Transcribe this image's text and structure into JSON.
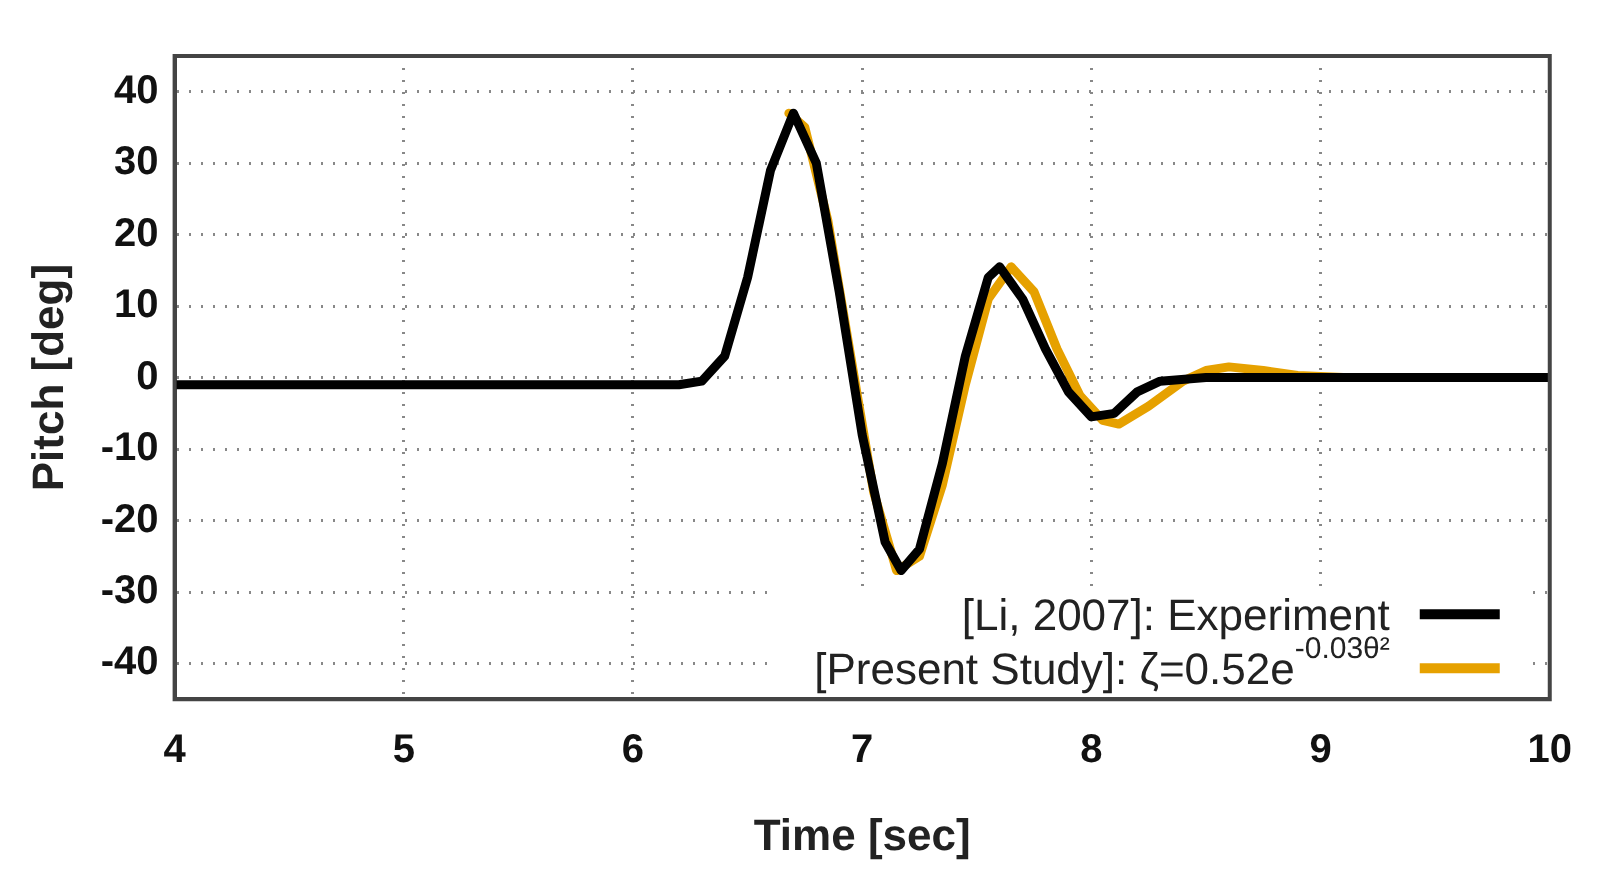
{
  "chart_data": {
    "type": "line",
    "xlabel": "Time [sec]",
    "ylabel": "Pitch [deg]",
    "xlim": [
      4,
      10
    ],
    "ylim": [
      -45,
      45
    ],
    "xticks": [
      4,
      5,
      6,
      7,
      8,
      9,
      10
    ],
    "yticks": [
      -40,
      -30,
      -20,
      -10,
      0,
      10,
      20,
      30,
      40
    ],
    "grid": true,
    "legend": "bottom right",
    "marker": "none",
    "line_style": "solid",
    "series": [
      {
        "name": "[Li, 2007]: Experiment",
        "color": "#000000",
        "x": [
          4,
          6.2,
          6.3,
          6.4,
          6.5,
          6.6,
          6.7,
          6.8,
          6.9,
          7.0,
          7.1,
          7.17,
          7.25,
          7.35,
          7.45,
          7.55,
          7.6,
          7.7,
          7.8,
          7.9,
          8.0,
          8.1,
          8.2,
          8.3,
          8.5,
          10
        ],
        "values": [
          -1,
          -1,
          -0.5,
          3,
          14,
          29,
          37,
          30,
          12,
          -8,
          -23,
          -27,
          -24,
          -12,
          3,
          14,
          15.5,
          11,
          4,
          -2,
          -5.5,
          -5,
          -2,
          -0.5,
          0,
          0
        ]
      },
      {
        "name": "[Present Study]: ζ=0.52e$^{-0.03θ²}$",
        "color": "#e6a100",
        "x": [
          6.68,
          6.75,
          6.85,
          6.95,
          7.05,
          7.15,
          7.25,
          7.35,
          7.45,
          7.55,
          7.65,
          7.75,
          7.85,
          7.95,
          8.05,
          8.12,
          8.25,
          8.4,
          8.5,
          8.6,
          8.75,
          8.9,
          9.1,
          9.67
        ],
        "values": [
          37,
          35,
          22,
          3,
          -16,
          -27,
          -25,
          -15,
          -1,
          11,
          15.5,
          12,
          4,
          -2.5,
          -6,
          -6.5,
          -4,
          -0.5,
          1,
          1.5,
          1,
          0.3,
          0,
          0
        ]
      }
    ]
  }
}
